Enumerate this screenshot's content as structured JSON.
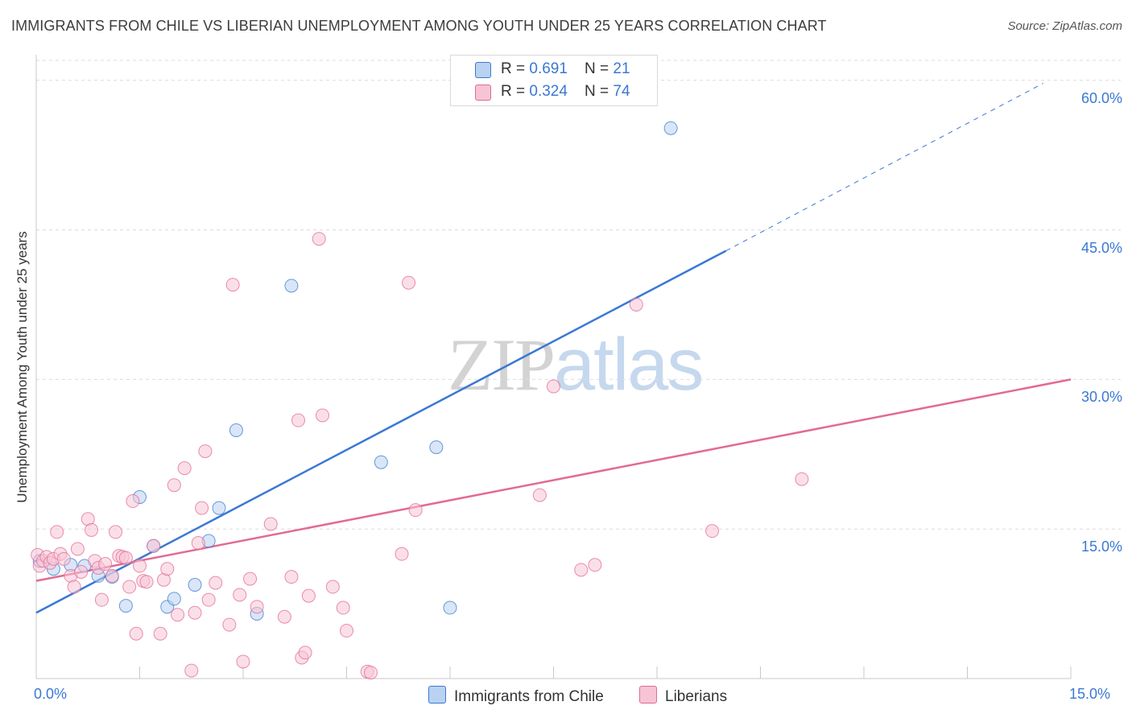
{
  "title": "IMMIGRANTS FROM CHILE VS LIBERIAN UNEMPLOYMENT AMONG YOUTH UNDER 25 YEARS CORRELATION CHART",
  "source": "Source: ZipAtlas.com",
  "watermark": {
    "part1": "ZIP",
    "part2": "atlas"
  },
  "colors": {
    "chile": "#3a78d4",
    "chile_fill": "#b9d2f1",
    "liberian": "#e26a93",
    "liberian_fill": "#f7c4d5",
    "tick_text": "#3a78d4"
  },
  "legend": {
    "chile": {
      "r_label": "R = ",
      "r_value": "0.691",
      "n_label": "N = ",
      "n_value": "21"
    },
    "liberian": {
      "r_label": "R = ",
      "r_value": "0.324",
      "n_label": "N = ",
      "n_value": "74"
    }
  },
  "bottom_legend": {
    "chile": "Immigrants from Chile",
    "liberian": "Liberians"
  },
  "chart_data": {
    "type": "scatter",
    "title": "IMMIGRANTS FROM CHILE VS LIBERIAN UNEMPLOYMENT AMONG YOUTH UNDER 25 YEARS CORRELATION CHART",
    "xlabel": "",
    "ylabel": "Unemployment Among Youth under 25 years",
    "xlim": [
      0,
      15
    ],
    "ylim": [
      0,
      62
    ],
    "x_tick_labels": [
      "0.0%",
      "15.0%"
    ],
    "y_ticks": [
      15,
      30,
      45,
      60
    ],
    "y_tick_labels": [
      "15.0%",
      "30.0%",
      "45.0%",
      "60.0%"
    ],
    "grid": true,
    "series": [
      {
        "name": "Immigrants from Chile",
        "trend": {
          "x0": 0,
          "y0": 6.6,
          "x1": 10.0,
          "y1": 42.9,
          "dashed_to_x": 14.6,
          "dashed_to_y": 59.7
        },
        "points": [
          [
            0.05,
            11.8
          ],
          [
            0.25,
            11.0
          ],
          [
            0.5,
            11.4
          ],
          [
            0.7,
            11.3
          ],
          [
            0.9,
            10.3
          ],
          [
            1.1,
            10.2
          ],
          [
            1.3,
            7.3
          ],
          [
            1.5,
            18.2
          ],
          [
            1.7,
            13.3
          ],
          [
            1.9,
            7.2
          ],
          [
            2.0,
            8.0
          ],
          [
            2.3,
            9.4
          ],
          [
            2.5,
            13.8
          ],
          [
            2.65,
            17.1
          ],
          [
            2.9,
            24.9
          ],
          [
            3.2,
            6.5
          ],
          [
            3.7,
            39.4
          ],
          [
            5.0,
            21.7
          ],
          [
            5.8,
            23.2
          ],
          [
            6.0,
            7.1
          ],
          [
            9.2,
            55.2
          ]
        ]
      },
      {
        "name": "Liberians",
        "trend": {
          "x0": 0,
          "y0": 9.8,
          "x1": 15,
          "y1": 30.0
        },
        "points": [
          [
            0.02,
            12.4
          ],
          [
            0.05,
            11.3
          ],
          [
            0.1,
            11.8
          ],
          [
            0.15,
            12.2
          ],
          [
            0.2,
            11.6
          ],
          [
            0.25,
            12.0
          ],
          [
            0.3,
            14.7
          ],
          [
            0.35,
            12.5
          ],
          [
            0.4,
            12.0
          ],
          [
            0.5,
            10.3
          ],
          [
            0.55,
            9.2
          ],
          [
            0.6,
            13.0
          ],
          [
            0.65,
            10.7
          ],
          [
            0.75,
            16.0
          ],
          [
            0.8,
            14.9
          ],
          [
            0.85,
            11.8
          ],
          [
            0.9,
            11.1
          ],
          [
            0.95,
            7.9
          ],
          [
            1.0,
            11.5
          ],
          [
            1.1,
            10.3
          ],
          [
            1.15,
            14.7
          ],
          [
            1.2,
            12.3
          ],
          [
            1.25,
            12.2
          ],
          [
            1.3,
            12.1
          ],
          [
            1.35,
            9.2
          ],
          [
            1.4,
            17.8
          ],
          [
            1.45,
            4.5
          ],
          [
            1.5,
            11.3
          ],
          [
            1.55,
            9.8
          ],
          [
            1.6,
            9.7
          ],
          [
            1.7,
            13.3
          ],
          [
            1.8,
            4.5
          ],
          [
            1.85,
            9.9
          ],
          [
            1.9,
            11.0
          ],
          [
            2.0,
            19.4
          ],
          [
            2.05,
            6.4
          ],
          [
            2.15,
            21.1
          ],
          [
            2.25,
            0.8
          ],
          [
            2.3,
            6.6
          ],
          [
            2.35,
            13.6
          ],
          [
            2.4,
            17.1
          ],
          [
            2.45,
            22.8
          ],
          [
            2.5,
            7.9
          ],
          [
            2.6,
            9.6
          ],
          [
            2.8,
            5.4
          ],
          [
            2.85,
            39.5
          ],
          [
            2.95,
            8.4
          ],
          [
            3.0,
            1.7
          ],
          [
            3.1,
            10.0
          ],
          [
            3.2,
            7.2
          ],
          [
            3.4,
            15.5
          ],
          [
            3.6,
            6.2
          ],
          [
            3.7,
            10.2
          ],
          [
            3.8,
            25.9
          ],
          [
            3.85,
            2.1
          ],
          [
            3.9,
            2.6
          ],
          [
            3.95,
            8.3
          ],
          [
            4.1,
            44.1
          ],
          [
            4.15,
            26.4
          ],
          [
            4.3,
            9.2
          ],
          [
            4.45,
            7.1
          ],
          [
            4.5,
            4.8
          ],
          [
            4.8,
            0.7
          ],
          [
            4.85,
            0.6
          ],
          [
            5.3,
            12.5
          ],
          [
            5.4,
            39.7
          ],
          [
            5.5,
            16.9
          ],
          [
            7.3,
            18.4
          ],
          [
            7.5,
            29.3
          ],
          [
            7.9,
            10.9
          ],
          [
            8.1,
            11.4
          ],
          [
            8.7,
            37.5
          ],
          [
            9.8,
            14.8
          ],
          [
            11.1,
            20.0
          ]
        ]
      }
    ]
  }
}
